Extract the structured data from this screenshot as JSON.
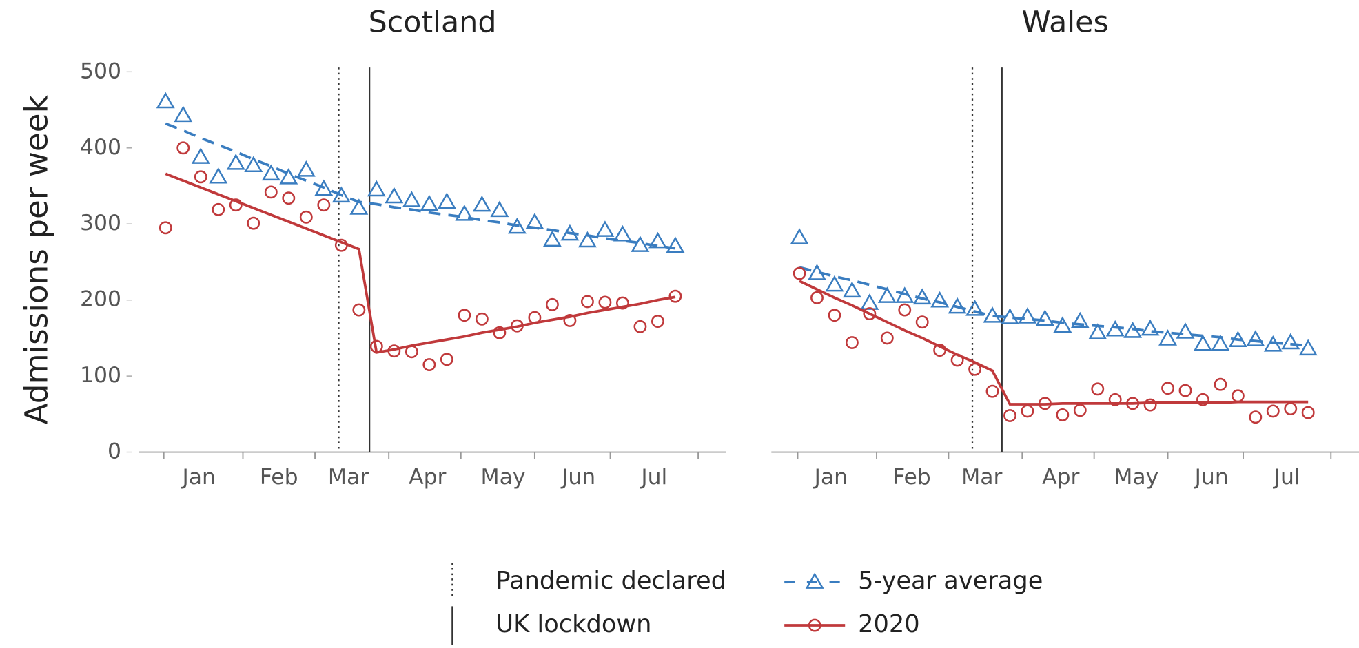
{
  "chart_data": [
    {
      "type": "line",
      "title": "Scotland",
      "ylabel": "Admissions per week",
      "x": [
        1,
        2,
        3,
        4,
        5,
        6,
        7,
        8,
        9,
        10,
        11,
        12,
        13,
        14,
        15,
        16,
        17,
        18,
        19,
        20,
        21,
        22,
        23,
        24,
        25,
        26,
        27,
        28,
        29,
        30
      ],
      "xlim": [
        -0.53,
        32.9
      ],
      "xticks": [
        {
          "value": 2.9,
          "label": "Jan"
        },
        {
          "value": 7.45,
          "label": "Feb"
        },
        {
          "value": 11.4,
          "label": "Mar"
        },
        {
          "value": 15.9,
          "label": "Apr"
        },
        {
          "value": 20.2,
          "label": "May"
        },
        {
          "value": 24.5,
          "label": "Jun"
        },
        {
          "value": 28.8,
          "label": "Jul"
        }
      ],
      "xminorticks": [
        0.9,
        5.4,
        9.5,
        13.7,
        17.8,
        22.0,
        26.3,
        31.3
      ],
      "ylim": [
        0,
        500
      ],
      "yticks": [
        0,
        100,
        200,
        300,
        400,
        500
      ],
      "vlines": [
        {
          "name": "Pandemic declared",
          "x": 10.85,
          "style": "dotted"
        },
        {
          "name": "UK lockdown",
          "x": 12.6,
          "style": "solid"
        }
      ],
      "series": [
        {
          "name": "5-year average",
          "color": "#3a7dc0",
          "marker": "triangle",
          "dash": "dashed",
          "values": [
            461,
            443,
            388,
            362,
            380,
            377,
            366,
            361,
            371,
            346,
            337,
            321,
            345,
            336,
            331,
            326,
            329,
            313,
            325,
            318,
            296,
            302,
            279,
            287,
            278,
            292,
            286,
            272,
            277,
            271
          ],
          "fit": [
            432,
            423,
            413,
            404,
            395,
            385,
            376,
            366,
            357,
            348,
            338,
            329,
            326,
            322,
            319,
            315,
            312,
            309,
            305,
            302,
            298,
            295,
            292,
            288,
            285,
            281,
            278,
            275,
            271,
            268
          ]
        },
        {
          "name": "2020",
          "color": "#c0393b",
          "marker": "circle",
          "dash": "solid",
          "values": [
            295,
            400,
            362,
            319,
            325,
            301,
            342,
            334,
            309,
            325,
            272,
            187,
            139,
            133,
            132,
            115,
            122,
            180,
            175,
            157,
            166,
            177,
            194,
            173,
            198,
            197,
            196,
            165,
            172,
            205
          ],
          "fit": [
            366,
            357,
            348,
            339,
            330,
            321,
            312,
            303,
            294,
            285,
            276,
            267,
            131,
            135,
            140,
            144,
            148,
            152,
            157,
            161,
            165,
            170,
            174,
            178,
            183,
            187,
            191,
            195,
            200,
            204
          ]
        }
      ]
    },
    {
      "type": "line",
      "title": "Wales",
      "x": [
        1,
        2,
        3,
        4,
        5,
        6,
        7,
        8,
        9,
        10,
        11,
        12,
        13,
        14,
        15,
        16,
        17,
        18,
        19,
        20,
        21,
        22,
        23,
        24,
        25,
        26,
        27,
        28,
        29,
        30
      ],
      "xlim": [
        -0.6,
        32.9
      ],
      "xticks": [
        {
          "value": 2.8,
          "label": "Jan"
        },
        {
          "value": 7.4,
          "label": "Feb"
        },
        {
          "value": 11.4,
          "label": "Mar"
        },
        {
          "value": 15.9,
          "label": "Apr"
        },
        {
          "value": 20.2,
          "label": "May"
        },
        {
          "value": 24.5,
          "label": "Jun"
        },
        {
          "value": 28.8,
          "label": "Jul"
        }
      ],
      "xminorticks": [
        0.9,
        5.4,
        9.5,
        13.7,
        17.8,
        22.0,
        26.3,
        31.3
      ],
      "ylim": [
        0,
        500
      ],
      "vlines": [
        {
          "x": 10.86,
          "style": "dotted"
        },
        {
          "x": 12.54,
          "style": "solid"
        }
      ],
      "series": [
        {
          "color": "#3a7dc0",
          "marker": "triangle",
          "dash": "dashed",
          "values": [
            282,
            235,
            220,
            212,
            196,
            205,
            205,
            203,
            199,
            191,
            188,
            179,
            177,
            178,
            175,
            166,
            172,
            157,
            161,
            159,
            162,
            149,
            158,
            142,
            142,
            147,
            148,
            141,
            144,
            136
          ],
          "fit": [
            243,
            237,
            231,
            226,
            220,
            214,
            208,
            202,
            197,
            191,
            185,
            179,
            177,
            175,
            173,
            170,
            168,
            166,
            164,
            162,
            159,
            157,
            155,
            153,
            151,
            148,
            146,
            144,
            142,
            140
          ]
        },
        {
          "color": "#c0393b",
          "marker": "circle",
          "dash": "solid",
          "values": [
            235,
            203,
            180,
            144,
            182,
            150,
            187,
            171,
            134,
            121,
            109,
            80,
            48,
            54,
            64,
            49,
            55,
            83,
            69,
            64,
            62,
            84,
            81,
            69,
            89,
            74,
            46,
            54,
            57,
            52
          ],
          "fit": [
            225,
            214,
            203,
            193,
            182,
            171,
            160,
            150,
            139,
            128,
            118,
            107,
            63,
            63,
            63,
            64,
            64,
            64,
            64,
            64,
            65,
            65,
            65,
            65,
            65,
            66,
            66,
            66,
            66,
            66
          ]
        }
      ]
    }
  ]
}
